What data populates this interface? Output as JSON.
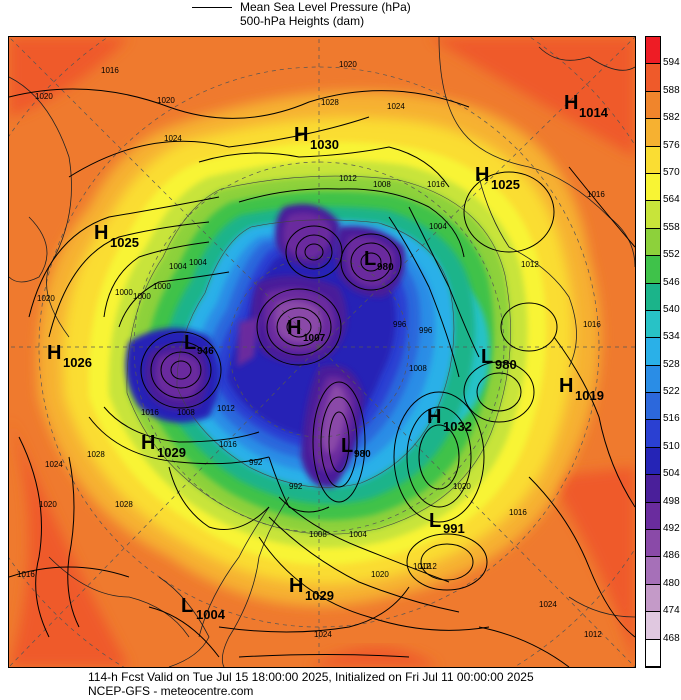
{
  "legend": {
    "line1": "Mean Sea Level Pressure (hPa)",
    "line2": "500-hPa Heights (dam)"
  },
  "footer": {
    "line1": "114-h Fcst Valid on Tue Jul 15 18:00:00 2025, Initialized on Fri Jul 11 00:00:00 2025",
    "line2": "NCEP-GFS  - meteocentre.com"
  },
  "colorbar": {
    "labels": [
      "594",
      "588",
      "582",
      "576",
      "570",
      "564",
      "558",
      "552",
      "546",
      "540",
      "534",
      "528",
      "522",
      "516",
      "510",
      "504",
      "498",
      "492",
      "486",
      "480",
      "474",
      "468"
    ],
    "colors": [
      "#ee1c25",
      "#ef5a2a",
      "#f0852c",
      "#f6b131",
      "#fadd33",
      "#f8f434",
      "#c8e43a",
      "#8dd13b",
      "#3fc24a",
      "#1bb48a",
      "#28c2c6",
      "#2ab0e8",
      "#2a8de6",
      "#2c68dc",
      "#2a40d2",
      "#2524b6",
      "#4a1f9a",
      "#6a2c9e",
      "#8a4aa8",
      "#a670b8",
      "#c49ac8",
      "#e0c8e0",
      "#ffffff"
    ]
  },
  "pressure_systems": [
    {
      "type": "H",
      "value": "1014"
    },
    {
      "type": "H",
      "value": "1030"
    },
    {
      "type": "H",
      "value": "1025"
    },
    {
      "type": "H",
      "value": "1025"
    },
    {
      "type": "H",
      "value": "1026"
    },
    {
      "type": "L",
      "value": "946"
    },
    {
      "type": "L",
      "value": "980"
    },
    {
      "type": "H",
      "value": "1019"
    },
    {
      "type": "H",
      "value": "1032"
    },
    {
      "type": "H",
      "value": "1029"
    },
    {
      "type": "L",
      "value": "980"
    },
    {
      "type": "L",
      "value": "991"
    },
    {
      "type": "H",
      "value": "1029"
    },
    {
      "type": "L",
      "value": "1004"
    },
    {
      "type": "L",
      "value": "980"
    },
    {
      "type": "H",
      "value": "1007"
    }
  ],
  "isobar_labels": [
    "1016",
    "1020",
    "1020",
    "1024",
    "1020",
    "1028",
    "1024",
    "1012",
    "1008",
    "1016",
    "1004",
    "1012",
    "1004",
    "1000",
    "1020",
    "1000",
    "1016",
    "1008",
    "992",
    "996",
    "1012",
    "1016",
    "1024",
    "1028",
    "1028",
    "1016",
    "1020",
    "1024",
    "992",
    "1008",
    "1004",
    "1012",
    "996",
    "1012",
    "1016",
    "1020",
    "1020",
    "1024",
    "1012",
    "1016",
    "1016",
    "1000",
    "1004",
    "1008"
  ]
}
